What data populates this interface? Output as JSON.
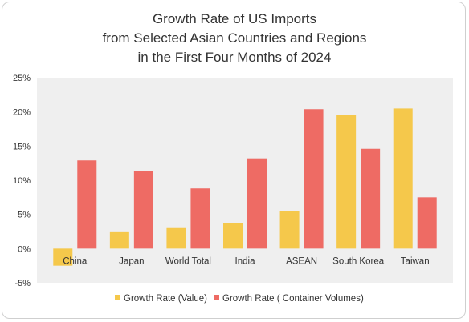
{
  "chart_data": {
    "type": "bar",
    "title_lines": [
      "Growth Rate of  US Imports",
      "from Selected Asian Countries and Regions",
      "in the First Four Months of 2024"
    ],
    "categories": [
      "China",
      "Japan",
      "World Total",
      "India",
      "ASEAN",
      "South Korea",
      "Taiwan"
    ],
    "series": [
      {
        "name": "Growth Rate (Value)",
        "color": "#F5C84B",
        "values": [
          -2.5,
          2.4,
          3.0,
          3.7,
          5.5,
          19.6,
          20.5
        ]
      },
      {
        "name": "Growth Rate ( Container Volumes)",
        "color": "#EE6B64",
        "values": [
          12.9,
          11.3,
          8.8,
          13.2,
          20.4,
          14.6,
          7.5
        ]
      }
    ],
    "ylim": [
      -5,
      25
    ],
    "yticks": [
      25,
      20,
      15,
      10,
      5,
      0,
      -5
    ],
    "ytick_labels": [
      "25%",
      "20%",
      "15%",
      "10%",
      "5%",
      "0%",
      "-5%"
    ],
    "plot_background": "#EFEFEF",
    "grid": false,
    "legend_position": "bottom"
  }
}
